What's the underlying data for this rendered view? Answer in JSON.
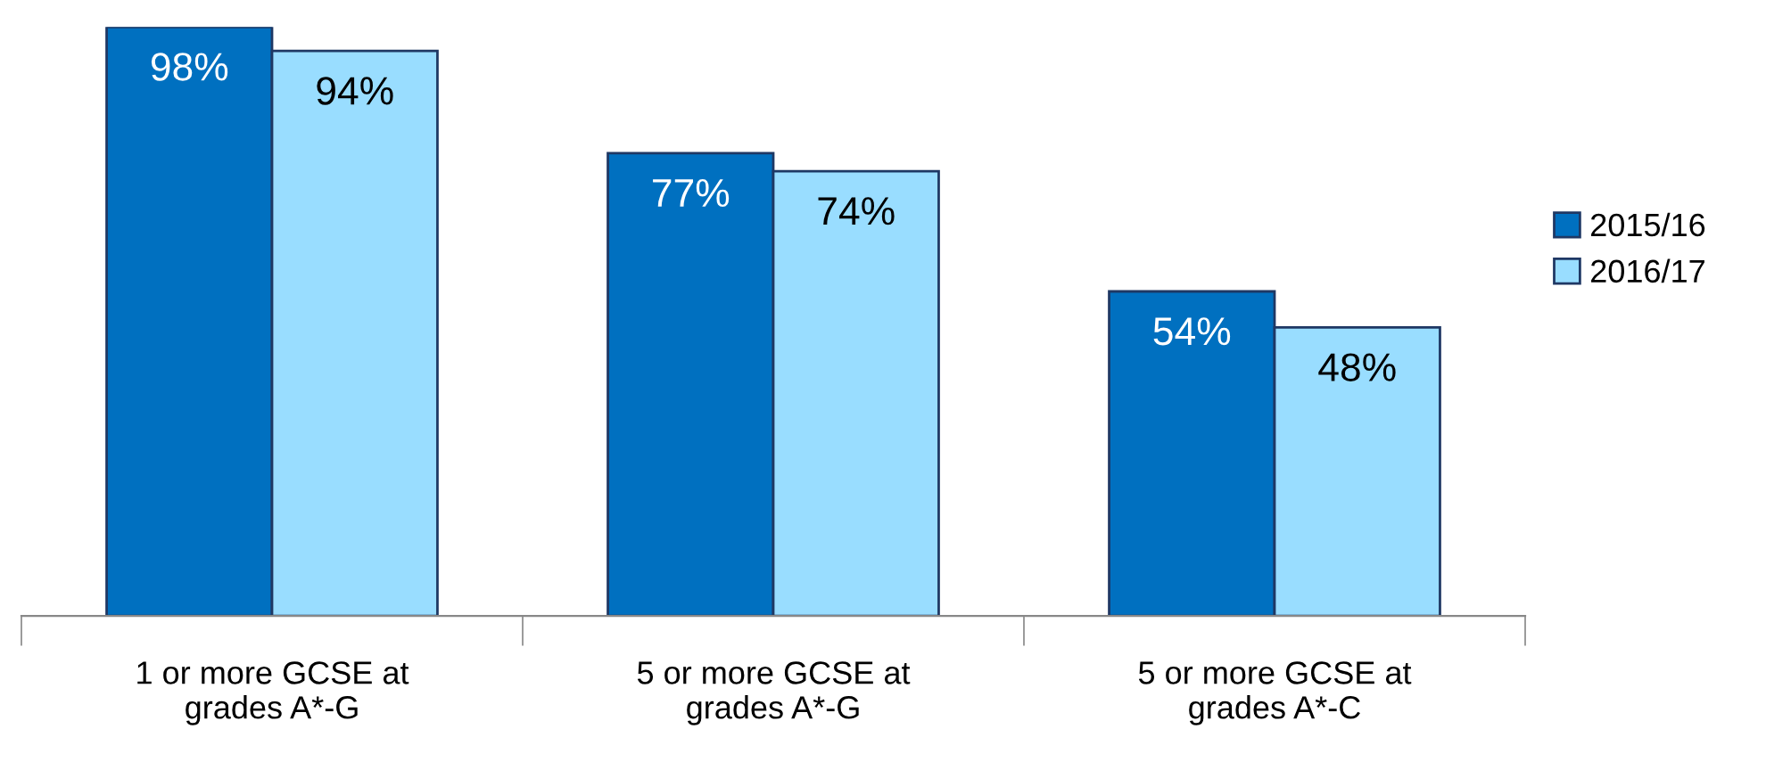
{
  "chart_data": {
    "type": "bar",
    "categories": [
      "1 or more GCSE at\ngrades A*-G",
      "5 or more GCSE at\ngrades A*-G",
      "5 or more GCSE at\ngrades A*-C"
    ],
    "series": [
      {
        "name": "2015/16",
        "color": "#0070c0",
        "values": [
          98,
          77,
          54
        ],
        "value_labels": [
          "98%",
          "77%",
          "54%"
        ]
      },
      {
        "name": "2016/17",
        "color": "#99ddff",
        "values": [
          94,
          74,
          48
        ],
        "value_labels": [
          "94%",
          "74%",
          "48%"
        ]
      }
    ],
    "legend": "right",
    "grid": false
  }
}
